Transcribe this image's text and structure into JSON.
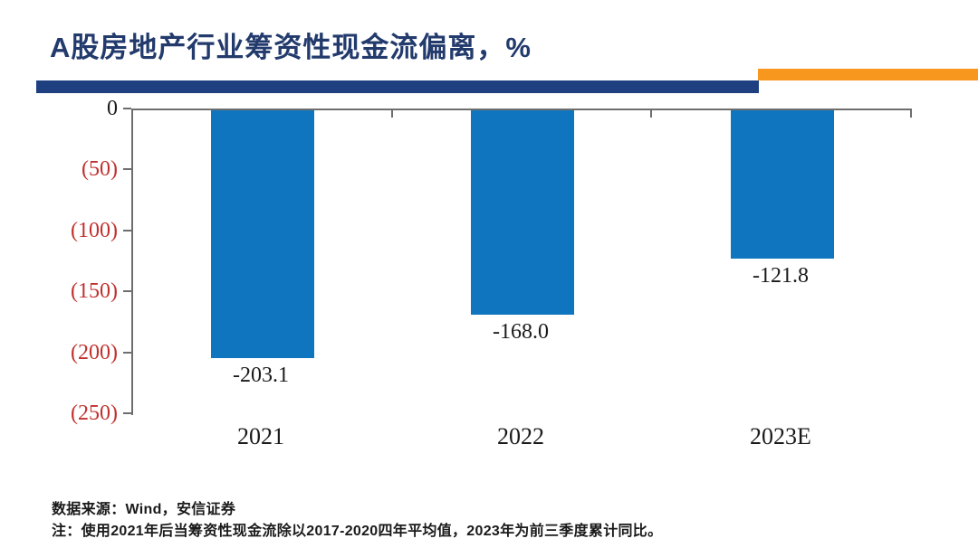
{
  "header": {
    "title": "A股房地产行业筹资性现金流偏离，%",
    "title_color": "#223A6C",
    "divider_blue_color": "#1E4080",
    "divider_orange_color": "#F7971D"
  },
  "chart_data": {
    "type": "bar",
    "title": "A股房地产行业筹资性现金流偏离，%",
    "categories": [
      "2021",
      "2022",
      "2023E"
    ],
    "values": [
      -203.1,
      -168.0,
      -121.8
    ],
    "data_labels": [
      "-203.1",
      "-168.0",
      "-121.8"
    ],
    "xlabel": "",
    "ylabel": "",
    "ylim": [
      -250,
      0
    ],
    "yticks": [
      {
        "label": "0",
        "value": 0,
        "color": "#1a1a1a"
      },
      {
        "label": "(50)",
        "value": -50,
        "color": "#C0312E"
      },
      {
        "label": "(100)",
        "value": -100,
        "color": "#C0312E"
      },
      {
        "label": "(150)",
        "value": -150,
        "color": "#C0312E"
      },
      {
        "label": "(200)",
        "value": -200,
        "color": "#C0312E"
      },
      {
        "label": "(250)",
        "value": -250,
        "color": "#C0312E"
      }
    ],
    "bar_color": "#0F75BE",
    "axis_color": "#6e6e6e",
    "grid": false,
    "legend": false,
    "orientation": "vertical-hanging-from-zero"
  },
  "footer": {
    "source": "数据来源：Wind，安信证券",
    "note": "注：使用2021年后当筹资性现金流除以2017-2020四年平均值，2023年为前三季度累计同比。"
  }
}
